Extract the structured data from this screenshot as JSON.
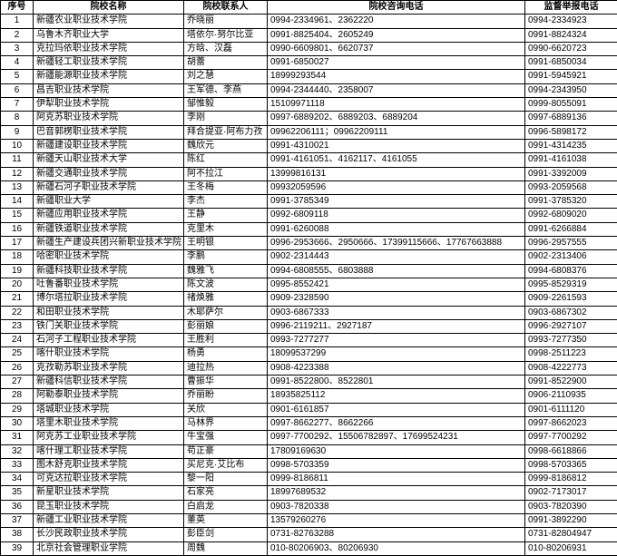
{
  "columns": [
    "序号",
    "院校名称",
    "院校联系人",
    "院校咨询电话",
    "监督举报电话"
  ],
  "rows": [
    {
      "i": "1",
      "n": "新疆农业职业技术学院",
      "c": "乔晓丽",
      "p": "0994-2334961、2362220",
      "r": "0994-2334923"
    },
    {
      "i": "2",
      "n": "乌鲁木齐职业大学",
      "c": "塔依尔·努尔比亚",
      "p": "0991-8825404、2605249",
      "r": "0991-8824324"
    },
    {
      "i": "3",
      "n": "克拉玛依职业技术学院",
      "c": "方晗、汉磊",
      "p": "0990-6609801、6620737",
      "r": "0990-6620723"
    },
    {
      "i": "4",
      "n": "新疆轻工职业技术学院",
      "c": "胡蕾",
      "p": "0991-6850027",
      "r": "0991-6850034"
    },
    {
      "i": "5",
      "n": "新疆能源职业技术学院",
      "c": "刘之慧",
      "p": "18999293544",
      "r": "0991-5945921"
    },
    {
      "i": "6",
      "n": "昌吉职业技术学院",
      "c": "王军德、李燕",
      "p": "0994-2344440、2358007",
      "r": "0994-2343950"
    },
    {
      "i": "7",
      "n": "伊犁职业技术学院",
      "c": "邹惟毅",
      "p": "15109971118",
      "r": "0999-8055091"
    },
    {
      "i": "8",
      "n": "阿克苏职业技术学院",
      "c": "李刚",
      "p": "0997-6889202、6889203、6889204",
      "r": "0997-6889136"
    },
    {
      "i": "9",
      "n": "巴音郭楞职业技术学院",
      "c": "拜合提亚·阿布力孜",
      "p": "09962206111；09962209111",
      "r": "0996-5898172"
    },
    {
      "i": "10",
      "n": "新疆建设职业技术学院",
      "c": "魏欣元",
      "p": "0991-4310021",
      "r": "0991-4314235"
    },
    {
      "i": "11",
      "n": "新疆天山职业技术大学",
      "c": "陈红",
      "p": "0991-4161051、4162117、4161055",
      "r": "0991-4161038"
    },
    {
      "i": "12",
      "n": "新疆交通职业技术学院",
      "c": "阿不拉江",
      "p": "13999816131",
      "r": "0991-3392009"
    },
    {
      "i": "13",
      "n": "新疆石河子职业技术学院",
      "c": "王冬梅",
      "p": "09932059596",
      "r": "0993-2059568"
    },
    {
      "i": "14",
      "n": "新疆职业大学",
      "c": "李杰",
      "p": "0991-3785349",
      "r": "0991-3785320"
    },
    {
      "i": "15",
      "n": "新疆应用职业技术学院",
      "c": "王静",
      "p": "0992-6809118",
      "r": "0992-6809020"
    },
    {
      "i": "16",
      "n": "新疆铁道职业技术学院",
      "c": "克里木",
      "p": "0991-6260088",
      "r": "0991-6266884"
    },
    {
      "i": "17",
      "n": "新疆生产建设兵团兴新职业技术学院",
      "c": "王明银",
      "p": "0996-2953666、2950666、17399115666、17767663888",
      "r": "0996-2957555"
    },
    {
      "i": "18",
      "n": "哈密职业技术学院",
      "c": "李鹏",
      "p": "0902-2314443",
      "r": "0902-2313406"
    },
    {
      "i": "19",
      "n": "新疆科技职业技术学院",
      "c": "魏雅飞",
      "p": "0994-6808555、6803888",
      "r": "0994-6808376"
    },
    {
      "i": "20",
      "n": "吐鲁番职业技术学院",
      "c": "陈文波",
      "p": "0995-8552421",
      "r": "0995-8529319"
    },
    {
      "i": "21",
      "n": "博尔塔拉职业技术学院",
      "c": "禇焕雅",
      "p": "0909-2328590",
      "r": "0909-2261593"
    },
    {
      "i": "22",
      "n": "和田职业技术学院",
      "c": "木耶萨尔",
      "p": "0903-6867333",
      "r": "0903-6867302"
    },
    {
      "i": "23",
      "n": "铁门关职业技术学院",
      "c": "彭丽娘",
      "p": "0996-2119211、2927187",
      "r": "0996-2927107"
    },
    {
      "i": "24",
      "n": "石河子工程职业技术学院",
      "c": "王胜利",
      "p": "0993-7277277",
      "r": "0993-7277350"
    },
    {
      "i": "25",
      "n": "喀什职业技术学院",
      "c": "杨勇",
      "p": "18099537299",
      "r": "0998-2511223"
    },
    {
      "i": "26",
      "n": "克孜勒苏职业技术学院",
      "c": "迪拉热",
      "p": "0908-4223388",
      "r": "0908-4222773"
    },
    {
      "i": "27",
      "n": "新疆科信职业技术学院",
      "c": "曹振华",
      "p": "0991-8522800、8522801",
      "r": "0991-8522900"
    },
    {
      "i": "28",
      "n": "阿勒泰职业技术学院",
      "c": "乔丽盼",
      "p": "18935825112",
      "r": "0906-2110935"
    },
    {
      "i": "29",
      "n": "塔城职业技术学院",
      "c": "关欣",
      "p": "0901-6161857",
      "r": "0901-6111120"
    },
    {
      "i": "30",
      "n": "塔里木职业技术学院",
      "c": "马林界",
      "p": "0997-8662277、8662266",
      "r": "0997-8662023"
    },
    {
      "i": "31",
      "n": "阿克苏工业职业技术学院",
      "c": "牛宝强",
      "p": "0997-7700292、15506782897、17699524231",
      "r": "0997-7700292"
    },
    {
      "i": "32",
      "n": "喀什理工职业技术学院",
      "c": "苟正豪",
      "p": "17809169630",
      "r": "0998-6618866"
    },
    {
      "i": "33",
      "n": "图木舒克职业技术学院",
      "c": "买尼克·艾比布",
      "p": "0998-5703359",
      "r": "0998-5703365"
    },
    {
      "i": "34",
      "n": "可克达拉职业技术学院",
      "c": "黎一阳",
      "p": "0999-8186811",
      "r": "0999-8186812"
    },
    {
      "i": "35",
      "n": "新星职业技术学院",
      "c": "石家亮",
      "p": "18997689532",
      "r": "0902-7173017"
    },
    {
      "i": "36",
      "n": "昆玉职业技术学院",
      "c": "白启龙",
      "p": "0903-7820338",
      "r": "0903-7820390"
    },
    {
      "i": "37",
      "n": "新疆工业职业技术学院",
      "c": "董英",
      "p": "13579260276",
      "r": "0991-3892290"
    },
    {
      "i": "38",
      "n": "长沙民政职业技术学院",
      "c": "彭臣剑",
      "p": "0731-82763288",
      "r": "0731-82804947"
    },
    {
      "i": "39",
      "n": "北京社会管理职业学院",
      "c": "周魏",
      "p": "010-80206903、80206930",
      "r": "010-80206931"
    }
  ]
}
